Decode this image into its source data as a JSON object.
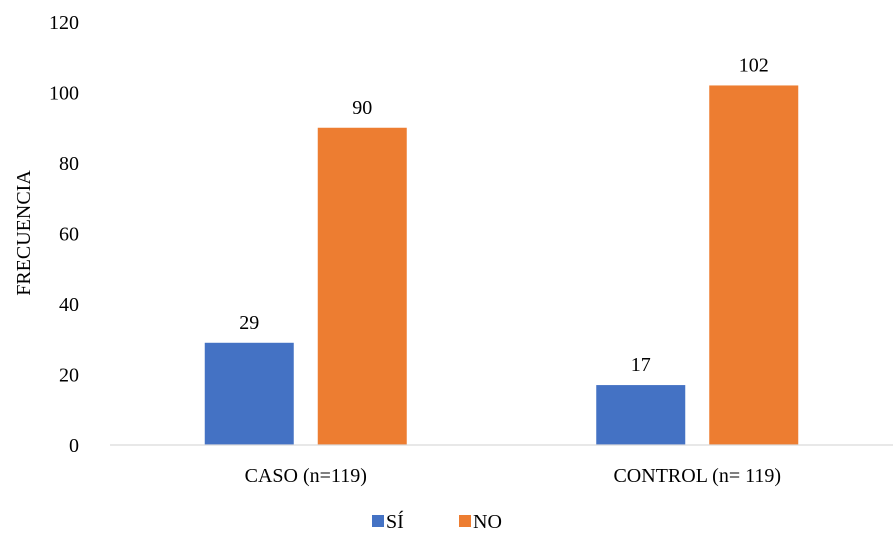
{
  "chart_data": {
    "type": "bar",
    "title": "",
    "xlabel": "",
    "ylabel": "FRECUENCIA",
    "ylim": [
      0,
      120
    ],
    "yticks": [
      0,
      20,
      40,
      60,
      80,
      100,
      120
    ],
    "grid": false,
    "legend_position": "bottom",
    "categories": [
      "CASO (n=119)",
      "CONTROL (n= 119)"
    ],
    "series": [
      {
        "name": "SÍ",
        "color": "#4472c4",
        "values": [
          29,
          17
        ]
      },
      {
        "name": "NO",
        "color": "#ed7d31",
        "values": [
          90,
          102
        ]
      }
    ],
    "data_labels": true
  }
}
